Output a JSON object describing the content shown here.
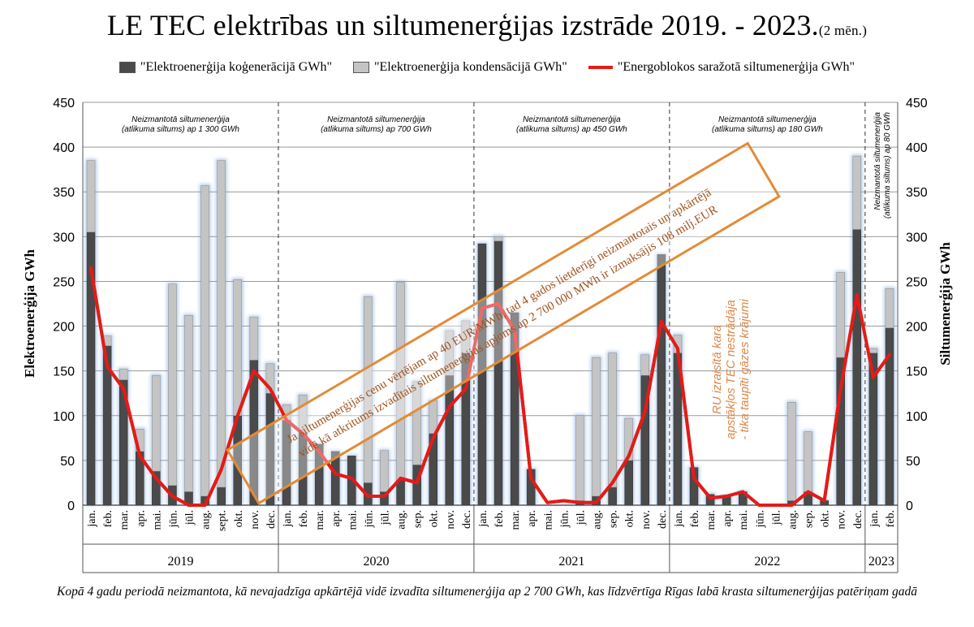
{
  "title": "LE TEC elektrības un siltumenerģijas izstrāde 2019. - 2023.",
  "title_suffix": "(2 mēn.)",
  "legend": [
    {
      "label": "\"Elektroenerģija koģenerācijā GWh\"",
      "color": "#4a4a4a"
    },
    {
      "label": "\"Elektroenerģija kondensācijā GWh\"",
      "color": "#c4c4c4"
    },
    {
      "label": "\"Energoblokos saražotā siltumenerģija GWh\"",
      "color": "#e41b17"
    }
  ],
  "footnote": "Kopā 4 gadu periodā neizmantota, kā nevajadzīga apkārtējā vidē izvadīta siltumenerģija ap 2 700 GWh, kas līdzvērtīga Rīgas labā krasta siltumenerģijas patēriņam gadā",
  "chart_data": {
    "type": "bar",
    "stacked": true,
    "ylabel": "Elektroenerģija GWh",
    "y2label": "Siltumenerģija GWh",
    "ylim": [
      0,
      450
    ],
    "yticks": [
      0,
      50,
      100,
      150,
      200,
      250,
      300,
      350,
      400,
      450
    ],
    "grid": true,
    "legend_position": "top",
    "categories": [
      "jan.",
      "feb.",
      "mar.",
      "apr.",
      "mai.",
      "jūn.",
      "jūl.",
      "aug.",
      "sept.",
      "okt.",
      "nov.",
      "dec.",
      "jan.",
      "feb.",
      "mar.",
      "apr.",
      "mai.",
      "jūn.",
      "jūl.",
      "aug.",
      "sep.",
      "okt.",
      "nov.",
      "dec.",
      "jan.",
      "feb.",
      "mar.",
      "apr.",
      "mai.",
      "jūn.",
      "jūl.",
      "aug.",
      "sep.",
      "okt.",
      "nov.",
      "dec.",
      "jan.",
      "feb.",
      "mar.",
      "apr.",
      "mai.",
      "jūn.",
      "jūl.",
      "aug.",
      "sep.",
      "okt.",
      "nov.",
      "dec.",
      "jan.",
      "feb."
    ],
    "years": [
      {
        "label": "2019",
        "start": 0,
        "count": 12
      },
      {
        "label": "2020",
        "start": 12,
        "count": 12
      },
      {
        "label": "2021",
        "start": 24,
        "count": 12
      },
      {
        "label": "2022",
        "start": 36,
        "count": 12
      },
      {
        "label": "2023",
        "start": 48,
        "count": 2
      }
    ],
    "series": [
      {
        "name": "\"Elektroenerģija koģenerācijā GWh\"",
        "kind": "bar",
        "values": [
          305,
          178,
          140,
          60,
          38,
          22,
          15,
          10,
          20,
          100,
          162,
          125,
          95,
          80,
          68,
          60,
          55,
          25,
          15,
          28,
          45,
          80,
          145,
          170,
          292,
          295,
          215,
          40,
          0,
          0,
          5,
          10,
          20,
          50,
          145,
          280,
          170,
          42,
          12,
          10,
          15,
          0,
          0,
          5,
          15,
          5,
          165,
          308,
          170,
          198
        ]
      },
      {
        "name": "\"Elektroenerģija kondensācijā GWh\"",
        "kind": "bar",
        "values": [
          80,
          11,
          12,
          25,
          107,
          225,
          197,
          347,
          365,
          152,
          48,
          33,
          17,
          43,
          0,
          0,
          0,
          208,
          46,
          221,
          93,
          37,
          50,
          36,
          0,
          5,
          0,
          0,
          0,
          0,
          95,
          155,
          150,
          47,
          23,
          0,
          20,
          0,
          0,
          0,
          0,
          0,
          0,
          110,
          67,
          0,
          95,
          82,
          5,
          44
        ]
      },
      {
        "name": "\"Energoblokos saražotā siltumenerģija GWh\"",
        "kind": "line",
        "color": "#e41b17",
        "values": [
          265,
          155,
          130,
          55,
          30,
          10,
          0,
          0,
          40,
          100,
          150,
          130,
          95,
          80,
          60,
          35,
          30,
          10,
          10,
          30,
          25,
          75,
          110,
          130,
          220,
          225,
          195,
          30,
          3,
          5,
          3,
          3,
          25,
          55,
          105,
          205,
          175,
          30,
          8,
          10,
          15,
          0,
          0,
          0,
          15,
          5,
          130,
          235,
          143,
          168
        ]
      }
    ],
    "section_notes": [
      {
        "text": [
          "Neizmantotā siltumenerģija",
          "(atlikuma siltums)  ap 1 300 GWh"
        ]
      },
      {
        "text": [
          "Neizmantotā siltumenerģija",
          "(atlikuma siltums)  ap 700 GWh"
        ]
      },
      {
        "text": [
          "Neizmantotā siltumenerģija",
          "(atlikuma siltums)  ap 450 GWh"
        ]
      },
      {
        "text": [
          "Neizmantotā siltumenerģija",
          "(atlikuma siltums)  ap 180 GWh"
        ]
      },
      {
        "text": [
          "Neizmantotā siltumenerģija",
          "(atlikuma siltums)  ap 80 GWh"
        ]
      }
    ],
    "callout": {
      "text": [
        "Ja siltumenerģijas cenu vērtējam ap 40 EUR/MWh, tad 4 gados lietderīgi neizmantotais un apkārtējā",
        "vidē kā atkritums izvadītais siltumenerģijas apjoms ap 2 700 000 MWh ir izmaksājis 108 milj.EUR"
      ],
      "color": "#e38b36"
    },
    "note_2022": {
      "text": [
        "RU izraisītā kara",
        "apstākļos TEC nestrādāja",
        "- tika taupīti gāzes krājumi"
      ],
      "color": "#d9884a"
    }
  }
}
